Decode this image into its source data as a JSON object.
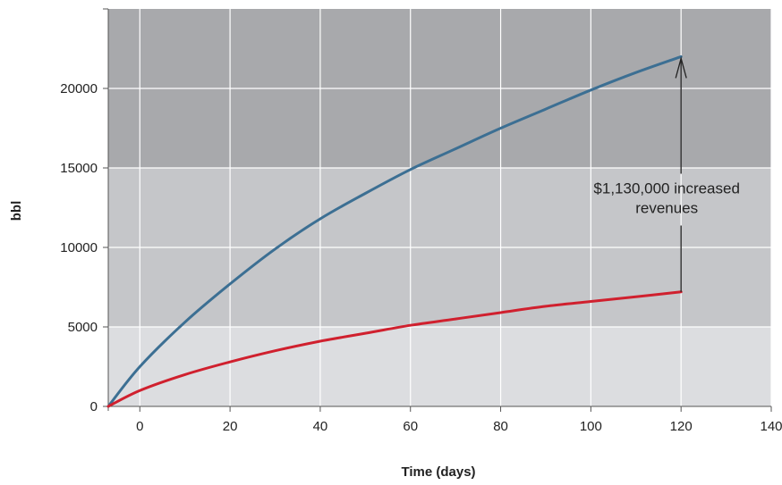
{
  "chart_data": {
    "type": "line",
    "title": "",
    "xlabel": "Time (days)",
    "ylabel": "bbl",
    "xlim": [
      -7,
      140
    ],
    "ylim": [
      0,
      25000
    ],
    "x_ticks": [
      0,
      20,
      40,
      60,
      80,
      100,
      120,
      140
    ],
    "y_ticks": [
      0,
      5000,
      10000,
      15000,
      20000
    ],
    "grid": true,
    "colors": {
      "band_dark": "#a8a9ac",
      "band_mid": "#c5c6c9",
      "band_light": "#dcdde0",
      "upper_series": "#3c6f93",
      "lower_series": "#d0202e",
      "grid": "#ffffff"
    },
    "series": [
      {
        "color": "#3c6f93",
        "x": [
          -7,
          0,
          10,
          20,
          30,
          40,
          50,
          60,
          70,
          80,
          90,
          100,
          110,
          120
        ],
        "y": [
          0,
          2500,
          5300,
          7700,
          9900,
          11800,
          13400,
          14900,
          16200,
          17500,
          18700,
          19900,
          21000,
          22000
        ]
      },
      {
        "color": "#d0202e",
        "x": [
          -7,
          0,
          10,
          20,
          30,
          40,
          50,
          60,
          70,
          80,
          90,
          100,
          110,
          120
        ],
        "y": [
          0,
          1000,
          2000,
          2800,
          3500,
          4100,
          4600,
          5100,
          5500,
          5900,
          6300,
          6600,
          6900,
          7200
        ]
      }
    ],
    "annotations": [
      {
        "lines": [
          "$1,130,000 increased",
          "revenues"
        ],
        "x": 120,
        "y_from": 7200,
        "y_to": 22000
      }
    ]
  }
}
